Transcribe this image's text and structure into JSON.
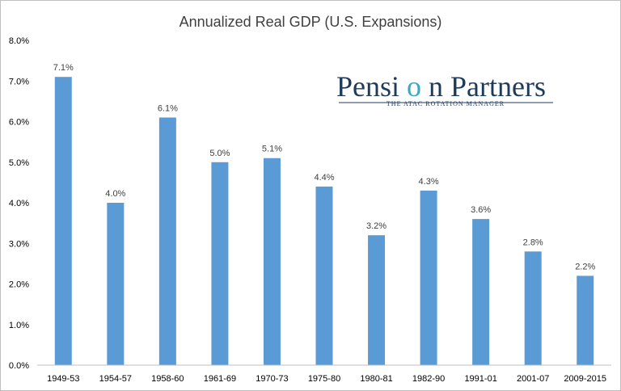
{
  "chart_data": {
    "type": "bar",
    "title": "Annualized Real GDP (U.S. Expansions)",
    "xlabel": "",
    "ylabel": "",
    "categories": [
      "1949-53",
      "1954-57",
      "1958-60",
      "1961-69",
      "1970-73",
      "1975-80",
      "1980-81",
      "1982-90",
      "1991-01",
      "2001-07",
      "2009-2015"
    ],
    "values": [
      7.1,
      4.0,
      6.1,
      5.0,
      5.1,
      4.4,
      3.2,
      4.3,
      3.6,
      2.8,
      2.2
    ],
    "data_labels": [
      "7.1%",
      "4.0%",
      "6.1%",
      "5.0%",
      "5.1%",
      "4.4%",
      "3.2%",
      "4.3%",
      "3.6%",
      "2.8%",
      "2.2%"
    ],
    "ylim": [
      0,
      8
    ],
    "yticks": [
      0,
      1,
      2,
      3,
      4,
      5,
      6,
      7,
      8
    ],
    "ytick_labels": [
      "0.0%",
      "1.0%",
      "2.0%",
      "3.0%",
      "4.0%",
      "5.0%",
      "6.0%",
      "7.0%",
      "8.0%"
    ],
    "grid": false,
    "legend": "none",
    "bar_color": "#5b9bd5"
  },
  "logo": {
    "name_part1": "Pensi",
    "name_part2": "n Partners",
    "tagline": "THE ATAC ROTATION MANAGER",
    "color_main": "#1f3b5c",
    "color_accent": "#3aa7c6"
  }
}
